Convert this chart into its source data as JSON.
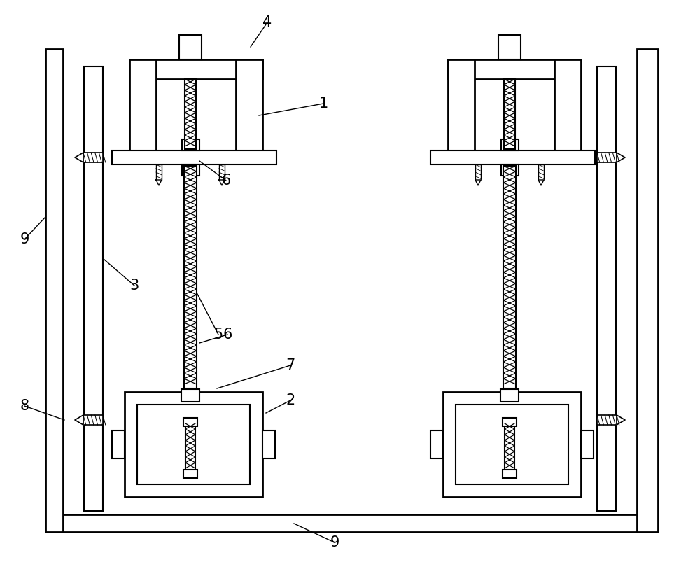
{
  "bg_color": "#ffffff",
  "lw": 1.5,
  "lw2": 2.0,
  "label_fontsize": 15
}
